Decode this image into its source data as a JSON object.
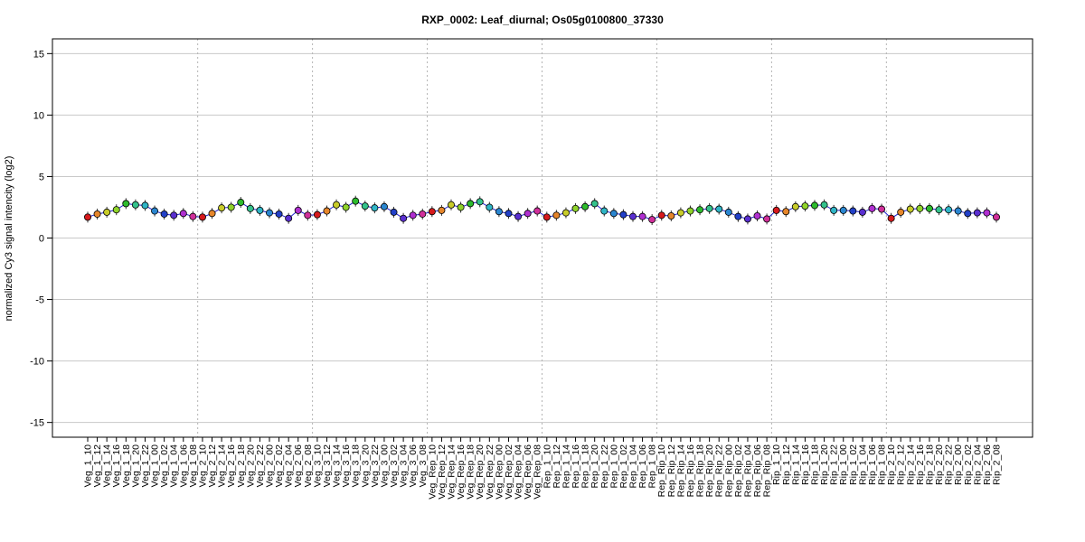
{
  "chart_data": {
    "type": "line",
    "title": "RXP_0002: Leaf_diurnal; Os05g0100800_37330",
    "ylabel": "normalized Cy3 signal intencity (log2)",
    "xlabel": "",
    "ylim": [
      -16.2,
      16.2
    ],
    "yticks": [
      -15,
      -10,
      -5,
      0,
      5,
      10,
      15
    ],
    "grid": true,
    "categories": [
      "Veg_1_10",
      "Veg_1_12",
      "Veg_1_14",
      "Veg_1_16",
      "Veg_1_18",
      "Veg_1_20",
      "Veg_1_22",
      "Veg_1_00",
      "Veg_1_02",
      "Veg_1_04",
      "Veg_1_06",
      "Veg_1_08",
      "Veg_2_10",
      "Veg_2_12",
      "Veg_2_14",
      "Veg_2_16",
      "Veg_2_18",
      "Veg_2_20",
      "Veg_2_22",
      "Veg_2_00",
      "Veg_2_02",
      "Veg_2_04",
      "Veg_2_06",
      "Veg_2_08",
      "Veg_3_10",
      "Veg_3_12",
      "Veg_3_14",
      "Veg_3_16",
      "Veg_3_18",
      "Veg_3_20",
      "Veg_3_22",
      "Veg_3_00",
      "Veg_3_02",
      "Veg_3_04",
      "Veg_3_06",
      "Veg_3_08",
      "Veg_Rep_10",
      "Veg_Rep_12",
      "Veg_Rep_14",
      "Veg_Rep_16",
      "Veg_Rep_18",
      "Veg_Rep_20",
      "Veg_Rep_22",
      "Veg_Rep_00",
      "Veg_Rep_02",
      "Veg_Rep_04",
      "Veg_Rep_06",
      "Veg_Rep_08",
      "Rep_1_10",
      "Rep_1_12",
      "Rep_1_14",
      "Rep_1_16",
      "Rep_1_18",
      "Rep_1_20",
      "Rep_1_22",
      "Rep_1_00",
      "Rep_1_02",
      "Rep_1_04",
      "Rep_1_06",
      "Rep_1_08",
      "Rep_Rip_10",
      "Rep_Rip_12",
      "Rep_Rip_14",
      "Rep_Rip_16",
      "Rep_Rip_18",
      "Rep_Rip_20",
      "Rep_Rip_22",
      "Rep_Rip_00",
      "Rep_Rip_02",
      "Rep_Rip_04",
      "Rep_Rip_06",
      "Rep_Rip_08",
      "Rip_1_10",
      "Rip_1_12",
      "Rip_1_14",
      "Rip_1_16",
      "Rip_1_18",
      "Rip_1_20",
      "Rip_1_22",
      "Rip_1_00",
      "Rip_1_02",
      "Rip_1_04",
      "Rip_1_06",
      "Rip_1_08",
      "Rip_2_10",
      "Rip_2_12",
      "Rip_2_14",
      "Rip_2_16",
      "Rip_2_18",
      "Rip_2_20",
      "Rip_2_22",
      "Rip_2_00",
      "Rip_2_02",
      "Rip_2_04",
      "Rip_2_06",
      "Rip_2_08"
    ],
    "values": [
      1.7,
      1.95,
      2.1,
      2.3,
      2.8,
      2.7,
      2.65,
      2.2,
      1.95,
      1.85,
      2.0,
      1.75,
      1.7,
      2.0,
      2.45,
      2.5,
      2.9,
      2.4,
      2.25,
      2.05,
      1.95,
      1.6,
      2.25,
      1.85,
      1.9,
      2.2,
      2.7,
      2.5,
      3.0,
      2.6,
      2.45,
      2.55,
      2.1,
      1.6,
      1.85,
      1.95,
      2.15,
      2.25,
      2.7,
      2.5,
      2.8,
      2.95,
      2.5,
      2.15,
      2.0,
      1.75,
      2.0,
      2.2,
      1.7,
      1.85,
      2.05,
      2.4,
      2.55,
      2.8,
      2.2,
      2.0,
      1.9,
      1.75,
      1.75,
      1.5,
      1.85,
      1.8,
      2.05,
      2.2,
      2.3,
      2.4,
      2.35,
      2.1,
      1.75,
      1.55,
      1.8,
      1.55,
      2.25,
      2.15,
      2.55,
      2.6,
      2.65,
      2.7,
      2.25,
      2.25,
      2.2,
      2.1,
      2.4,
      2.35,
      1.6,
      2.1,
      2.35,
      2.4,
      2.4,
      2.3,
      2.3,
      2.2,
      2.0,
      2.05,
      2.05,
      1.7
    ],
    "point_colors_by_hour": {
      "10": "#d7191c",
      "12": "#e6862b",
      "14": "#c8cc2a",
      "16": "#8fd32a",
      "18": "#2dbb2d",
      "20": "#34c28c",
      "22": "#2fb5c6",
      "00": "#2a86d0",
      "02": "#2240c8",
      "04": "#5a2fd0",
      "06": "#b02fd0",
      "08": "#d02f9a"
    },
    "line_color": "#1f1fcf",
    "group_separators_after_index": [
      11,
      23,
      35,
      47,
      59,
      71,
      83
    ]
  }
}
